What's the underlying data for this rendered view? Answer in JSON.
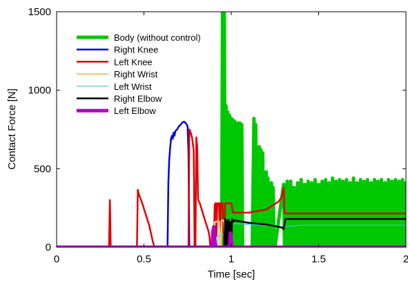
{
  "chart_data": {
    "type": "line",
    "title": "",
    "xlabel": "Time [sec]",
    "ylabel": "Contact Force [N]",
    "xlim": [
      0,
      2
    ],
    "ylim": [
      0,
      1500
    ],
    "xticks": [
      0,
      0.5,
      1,
      1.5,
      2
    ],
    "xtick_labels": [
      "0",
      "0.5",
      "1",
      "1.5",
      "2"
    ],
    "yticks": [
      0,
      500,
      1000,
      1500
    ],
    "ytick_labels": [
      "0",
      "500",
      "1000",
      "1500"
    ],
    "grid": false,
    "legend_position": "top-left",
    "series": [
      {
        "name": "Body (without control)",
        "color": "#00c800",
        "line_width": "thick",
        "x": [
          0,
          0.94,
          0.945,
          0.95,
          0.955,
          0.96,
          0.965,
          0.97,
          0.975,
          0.98,
          0.985,
          0.99,
          0.995,
          1.0,
          1.005,
          1.01,
          1.015,
          1.02,
          1.025,
          1.03,
          1.035,
          1.04,
          1.045,
          1.05,
          1.055,
          1.06,
          1.065,
          1.07,
          1.12,
          1.13,
          1.135,
          1.14,
          1.145,
          1.15,
          1.16,
          1.165,
          1.17,
          1.175,
          1.18,
          1.185,
          1.19,
          1.2,
          1.205,
          1.21,
          1.215,
          1.22,
          1.23,
          1.235,
          1.24,
          1.245,
          1.25,
          1.3,
          1.305,
          1.31,
          1.315,
          1.32,
          1.325,
          1.33,
          1.335,
          1.34,
          1.345,
          1.35,
          1.355,
          1.36,
          1.365,
          1.37,
          1.38,
          1.385,
          1.39,
          1.4,
          1.41,
          1.42,
          1.43,
          1.44,
          1.45,
          1.46,
          1.47,
          1.48,
          1.49,
          1.5,
          1.51,
          1.52,
          1.53,
          1.54,
          1.55,
          1.56,
          1.57,
          1.58,
          1.59,
          1.6,
          1.61,
          1.62,
          1.63,
          1.64,
          1.65,
          1.66,
          1.67,
          1.68,
          1.69,
          1.7,
          1.71,
          1.72,
          1.73,
          1.74,
          1.75,
          1.76,
          1.77,
          1.78,
          1.79,
          1.8,
          1.81,
          1.82,
          1.83,
          1.84,
          1.85,
          1.86,
          1.87,
          1.88,
          1.89,
          1.9,
          1.91,
          1.92,
          1.93,
          1.94,
          1.95,
          1.96,
          1.97,
          1.98,
          1.99,
          2.0
        ],
        "y": [
          0,
          0,
          0,
          1500,
          0,
          1500,
          0,
          900,
          0,
          860,
          0,
          840,
          0,
          820,
          0,
          810,
          0,
          800,
          0,
          790,
          0,
          790,
          0,
          790,
          0,
          780,
          0,
          0,
          0,
          820,
          0,
          780,
          0,
          0,
          640,
          0,
          620,
          0,
          600,
          0,
          0,
          480,
          0,
          440,
          0,
          0,
          410,
          0,
          380,
          0,
          0,
          400,
          0,
          380,
          0,
          420,
          0,
          350,
          0,
          420,
          0,
          380,
          0,
          380,
          0,
          0,
          410,
          0,
          0,
          430,
          0,
          400,
          0,
          420,
          0,
          410,
          0,
          430,
          0,
          400,
          0,
          420,
          0,
          430,
          0,
          410,
          0,
          440,
          0,
          420,
          0,
          430,
          0,
          420,
          0,
          430,
          0,
          410,
          0,
          440,
          0,
          410,
          0,
          430,
          0,
          420,
          0,
          430,
          0,
          410,
          0,
          430,
          0,
          420,
          0,
          430,
          0,
          410,
          0,
          430,
          0,
          420,
          0,
          430,
          0,
          420,
          0,
          430,
          0,
          420
        ]
      },
      {
        "name": "Right Knee",
        "color": "#0000e0",
        "line_width": "medium",
        "x": [
          0,
          0.635,
          0.64,
          0.645,
          0.65,
          0.655,
          0.66,
          0.665,
          0.67,
          0.675,
          0.68,
          0.69,
          0.7,
          0.71,
          0.72,
          0.73,
          0.74,
          0.75,
          0.755,
          0.76,
          2.0
        ],
        "y": [
          0,
          0,
          420,
          560,
          630,
          690,
          710,
          690,
          730,
          710,
          740,
          750,
          770,
          780,
          795,
          800,
          790,
          770,
          600,
          0,
          0
        ]
      },
      {
        "name": "Left Knee",
        "color": "#e00000",
        "line_width": "medium",
        "x": [
          0,
          0.3,
          0.305,
          0.31,
          0.315,
          0.46,
          0.465,
          0.47,
          0.49,
          0.51,
          0.53,
          0.55,
          0.56,
          0.57,
          0.755,
          0.76,
          0.765,
          0.775,
          0.785,
          0.79,
          0.795,
          0.8,
          0.805,
          0.81,
          0.82,
          0.85,
          0.87,
          0.875,
          0.88,
          0.9,
          0.905,
          0.91,
          0.915,
          0.92,
          0.93,
          0.935,
          0.94,
          0.95,
          0.96,
          0.965,
          0.97,
          1.0,
          1.01,
          1.1,
          1.2,
          1.27,
          1.29,
          1.3,
          1.305,
          1.31,
          2.0
        ],
        "y": [
          0,
          0,
          300,
          0,
          0,
          0,
          365,
          340,
          280,
          210,
          140,
          40,
          0,
          0,
          0,
          750,
          740,
          700,
          620,
          0,
          0,
          700,
          640,
          300,
          280,
          170,
          100,
          70,
          0,
          0,
          270,
          280,
          70,
          280,
          280,
          0,
          280,
          280,
          0,
          280,
          280,
          280,
          220,
          220,
          240,
          290,
          320,
          380,
          220,
          215,
          215
        ]
      },
      {
        "name": "Right Wrist",
        "color": "#ffc888",
        "line_width": "medium",
        "x": [
          0,
          0.9,
          0.905,
          0.93,
          0.935,
          0.94,
          0.945,
          0.96,
          0.965,
          1.0,
          1.005,
          2.0
        ],
        "y": [
          0,
          0,
          160,
          165,
          0,
          0,
          170,
          170,
          0,
          0,
          0,
          0
        ]
      },
      {
        "name": "Left Wrist",
        "color": "#40c8c8",
        "line_width": "thin",
        "x": [
          0,
          0.92,
          0.925,
          0.96,
          0.97,
          1.0,
          1.005,
          1.2,
          1.3,
          1.4,
          1.6,
          2.0
        ],
        "y": [
          0,
          0,
          70,
          80,
          90,
          100,
          150,
          140,
          130,
          140,
          140,
          140
        ]
      },
      {
        "name": "Right Elbow",
        "color": "#000000",
        "line_width": "medium",
        "x": [
          0,
          0.96,
          0.965,
          0.97,
          0.975,
          0.98,
          0.985,
          0.99,
          0.995,
          1.0,
          1.005,
          1.01,
          1.015,
          1.02,
          1.1,
          1.2,
          1.29,
          1.3,
          1.31,
          2.0
        ],
        "y": [
          0,
          0,
          180,
          0,
          170,
          0,
          175,
          0,
          160,
          0,
          180,
          170,
          165,
          170,
          155,
          145,
          125,
          115,
          180,
          180
        ]
      },
      {
        "name": "Left Elbow",
        "color": "#b400c8",
        "line_width": "thick",
        "x": [
          0,
          0.89,
          0.895,
          0.9,
          0.905,
          0.91,
          0.915,
          0.99,
          0.995,
          1.0,
          1.005,
          2.0
        ],
        "y": [
          0,
          0,
          100,
          130,
          60,
          0,
          0,
          0,
          90,
          40,
          0,
          0
        ]
      }
    ]
  }
}
